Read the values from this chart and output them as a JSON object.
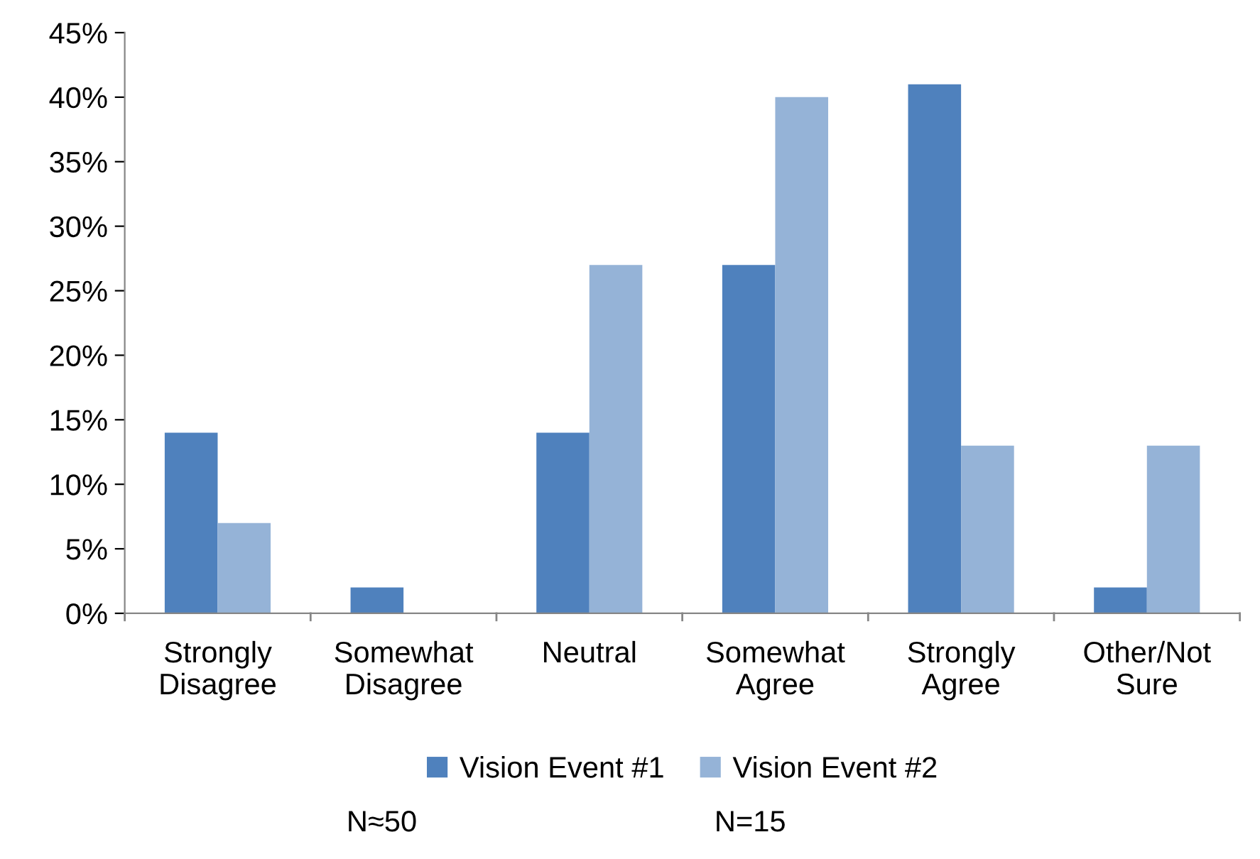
{
  "chart_data": {
    "type": "bar",
    "categories": [
      "Strongly\nDisagree",
      "Somewhat\nDisagree",
      "Neutral",
      "Somewhat\nAgree",
      "Strongly\nAgree",
      "Other/Not\nSure"
    ],
    "series": [
      {
        "name": "Vision Event #1",
        "color": "#4f81bd",
        "values": [
          14,
          2,
          14,
          27,
          41,
          2
        ]
      },
      {
        "name": "Vision Event #2",
        "color": "#95b3d7",
        "values": [
          7,
          0,
          27,
          40,
          13,
          13
        ]
      }
    ],
    "ylim": [
      0,
      45
    ],
    "yticks": [
      {
        "value": 0,
        "label": "0%"
      },
      {
        "value": 5,
        "label": "5%"
      },
      {
        "value": 10,
        "label": "10%"
      },
      {
        "value": 15,
        "label": "15%"
      },
      {
        "value": 20,
        "label": "20%"
      },
      {
        "value": 25,
        "label": "25%"
      },
      {
        "value": 30,
        "label": "30%"
      },
      {
        "value": 35,
        "label": "35%"
      },
      {
        "value": 40,
        "label": "40%"
      },
      {
        "value": 45,
        "label": "45%"
      }
    ],
    "grid": false,
    "legend": "bottom",
    "annotations": [
      "N≈50",
      "N=15"
    ]
  }
}
